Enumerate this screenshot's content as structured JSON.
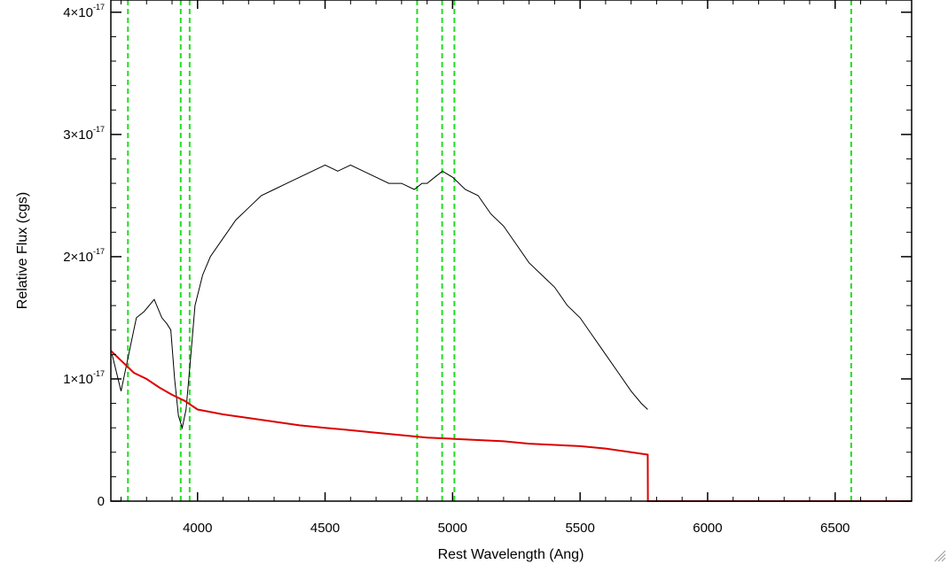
{
  "chart_data": {
    "type": "line",
    "xlabel": "Rest Wavelength (Ang)",
    "ylabel": "Relative Flux (cgs)",
    "xlim": [
      3660,
      6800
    ],
    "ylim": [
      0,
      4.1e-17
    ],
    "grid": false,
    "x_ticks": [
      {
        "value": 4000,
        "label": "4000"
      },
      {
        "value": 4500,
        "label": "4500"
      },
      {
        "value": 5000,
        "label": "5000"
      },
      {
        "value": 5500,
        "label": "5500"
      },
      {
        "value": 6000,
        "label": "6000"
      },
      {
        "value": 6500,
        "label": "6500"
      }
    ],
    "y_ticks": [
      {
        "value": 0,
        "mantissa": "0",
        "exponent": ""
      },
      {
        "value": 1e-17,
        "mantissa": "1×10",
        "exponent": "-17"
      },
      {
        "value": 2e-17,
        "mantissa": "2×10",
        "exponent": "-17"
      },
      {
        "value": 3e-17,
        "mantissa": "3×10",
        "exponent": "-17"
      },
      {
        "value": 4e-17,
        "mantissa": "4×10",
        "exponent": "-17"
      }
    ],
    "reference_lines": {
      "color": "#22dd22",
      "style": "dashed",
      "x": [
        3727,
        3934,
        3969,
        4861,
        4959,
        5007,
        6563
      ]
    },
    "series": [
      {
        "color": "#000000",
        "x": [
          3665,
          3700,
          3740,
          3760,
          3790,
          3830,
          3860,
          3880,
          3895,
          3910,
          3925,
          3940,
          3955,
          3970,
          3990,
          4020,
          4050,
          4100,
          4150,
          4200,
          4250,
          4300,
          4350,
          4400,
          4450,
          4500,
          4550,
          4600,
          4650,
          4700,
          4750,
          4800,
          4850,
          4880,
          4900,
          4930,
          4960,
          5000,
          5050,
          5100,
          5150,
          5200,
          5250,
          5300,
          5350,
          5400,
          5450,
          5500,
          5550,
          5600,
          5650,
          5700,
          5740,
          5765
        ],
        "y": [
          1.2e-17,
          9e-18,
          1.3e-17,
          1.5e-17,
          1.55e-17,
          1.65e-17,
          1.5e-17,
          1.45e-17,
          1.4e-17,
          1e-17,
          7e-18,
          6e-18,
          7.5e-18,
          1.1e-17,
          1.6e-17,
          1.85e-17,
          2e-17,
          2.15e-17,
          2.3e-17,
          2.4e-17,
          2.5e-17,
          2.55e-17,
          2.6e-17,
          2.65e-17,
          2.7e-17,
          2.75e-17,
          2.7e-17,
          2.75e-17,
          2.7e-17,
          2.65e-17,
          2.6e-17,
          2.6e-17,
          2.55e-17,
          2.6e-17,
          2.6e-17,
          2.65e-17,
          2.7e-17,
          2.65e-17,
          2.55e-17,
          2.5e-17,
          2.35e-17,
          2.25e-17,
          2.1e-17,
          1.95e-17,
          1.85e-17,
          1.75e-17,
          1.6e-17,
          1.5e-17,
          1.35e-17,
          1.2e-17,
          1.05e-17,
          9e-18,
          8e-18,
          7.5e-18
        ]
      },
      {
        "color": "#dd0000",
        "x": [
          3660,
          3700,
          3750,
          3800,
          3850,
          3900,
          3950,
          4000,
          4100,
          4200,
          4300,
          4400,
          4500,
          4600,
          4700,
          4800,
          4900,
          5000,
          5100,
          5200,
          5300,
          5400,
          5500,
          5600,
          5700,
          5765,
          5766,
          6800
        ],
        "y": [
          1.23e-17,
          1.15e-17,
          1.05e-17,
          1e-17,
          9.3e-18,
          8.7e-18,
          8.2e-18,
          7.5e-18,
          7.1e-18,
          6.8e-18,
          6.5e-18,
          6.2e-18,
          6e-18,
          5.8e-18,
          5.6e-18,
          5.4e-18,
          5.2e-18,
          5.1e-18,
          5e-18,
          4.9e-18,
          4.7e-18,
          4.6e-18,
          4.5e-18,
          4.3e-18,
          4e-18,
          3.8e-18,
          0.0,
          0.0
        ]
      }
    ]
  }
}
